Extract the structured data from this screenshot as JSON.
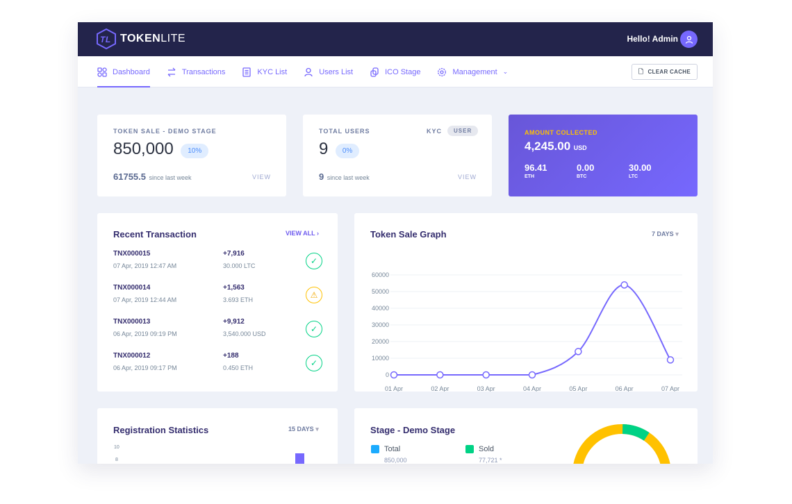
{
  "brand": {
    "name_bold": "TOKEN",
    "name_light": "LITE"
  },
  "header": {
    "greeting": "Hello! Admin"
  },
  "nav": {
    "items": [
      {
        "label": "Dashboard",
        "icon": "grid-icon",
        "active": true
      },
      {
        "label": "Transactions",
        "icon": "arrows-exchange-icon"
      },
      {
        "label": "KYC List",
        "icon": "document-icon"
      },
      {
        "label": "Users List",
        "icon": "users-icon"
      },
      {
        "label": "ICO Stage",
        "icon": "coins-icon"
      },
      {
        "label": "Management",
        "icon": "gear-icon",
        "dropdown": true
      }
    ],
    "clear_cache": "CLEAR CACHE"
  },
  "token_sale": {
    "label": "TOKEN SALE - DEMO STAGE",
    "value": "850,000",
    "percent": "10%",
    "week_value": "61755.5",
    "week_label": "since last week",
    "view": "VIEW"
  },
  "total_users": {
    "label": "TOTAL USERS",
    "tab_kyc": "KYC",
    "tab_user": "USER",
    "value": "9",
    "percent": "0%",
    "week_value": "9",
    "week_label": "since last week",
    "view": "VIEW"
  },
  "amount": {
    "label": "AMOUNT COLLECTED",
    "value": "4,245.00",
    "unit": "USD",
    "coins": [
      {
        "value": "96.41",
        "sym": "ETH"
      },
      {
        "value": "0.00",
        "sym": "BTC"
      },
      {
        "value": "30.00",
        "sym": "LTC"
      }
    ]
  },
  "recent": {
    "title": "Recent Transaction",
    "view_all": "VIEW ALL",
    "items": [
      {
        "id": "TNX000015",
        "date": "07 Apr, 2019 12:47 AM",
        "amount": "+7,916",
        "currency": "30.000 LTC",
        "status": "success"
      },
      {
        "id": "TNX000014",
        "date": "07 Apr, 2019 12:44 AM",
        "amount": "+1,563",
        "currency": "3.693 ETH",
        "status": "warning"
      },
      {
        "id": "TNX000013",
        "date": "06 Apr, 2019 09:19 PM",
        "amount": "+9,912",
        "currency": "3,540.000 USD",
        "status": "success"
      },
      {
        "id": "TNX000012",
        "date": "06 Apr, 2019 09:17 PM",
        "amount": "+188",
        "currency": "0.450 ETH",
        "status": "success"
      }
    ]
  },
  "graph": {
    "title": "Token Sale Graph",
    "range": "7 DAYS"
  },
  "chart_data": {
    "type": "line",
    "x": [
      "01 Apr",
      "02 Apr",
      "03 Apr",
      "04 Apr",
      "05 Apr",
      "06 Apr",
      "07 Apr"
    ],
    "values": [
      0,
      0,
      0,
      0,
      14000,
      54000,
      9000
    ],
    "ylim": [
      0,
      60000
    ],
    "yticks": [
      0,
      10000,
      20000,
      30000,
      40000,
      50000,
      60000
    ],
    "grid": true,
    "color": "#7668fe"
  },
  "registration": {
    "title": "Registration Statistics",
    "range": "15 DAYS",
    "yticks": [
      "10",
      "8"
    ]
  },
  "stage": {
    "title": "Stage - Demo Stage",
    "total_label": "Total",
    "total_value": "850,000",
    "sold_label": "Sold",
    "sold_value": "77,721 *",
    "colors": {
      "total": "#1babfe",
      "sold": "#00d285",
      "remaining": "#ffc100"
    }
  }
}
